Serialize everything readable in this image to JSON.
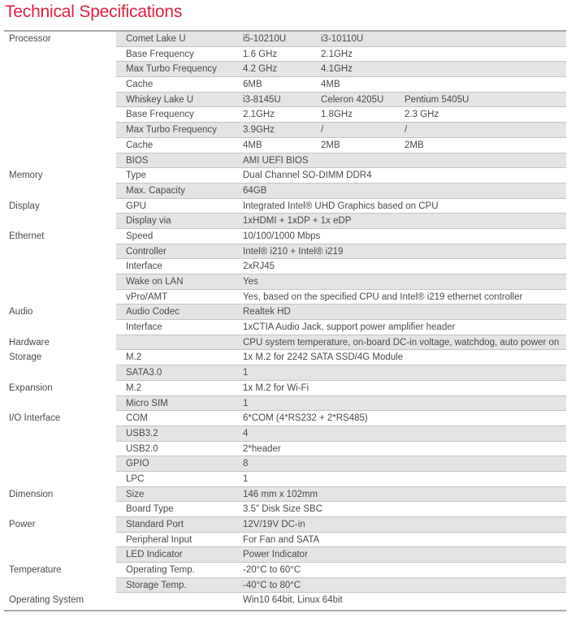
{
  "title": "Technical Specifications",
  "rows": [
    {
      "category": "Processor",
      "item": "Comet Lake U",
      "values": [
        "i5-10210U",
        "i3-10110U"
      ]
    },
    {
      "category": "",
      "item": "Base Frequency",
      "values": [
        "1.6 GHz",
        "2.1GHz"
      ]
    },
    {
      "category": "",
      "item": "Max Turbo Frequency",
      "values": [
        "4.2 GHz",
        "4.1GHz"
      ]
    },
    {
      "category": "",
      "item": "Cache",
      "values": [
        "6MB",
        "4MB"
      ]
    },
    {
      "category": "",
      "item": "Whiskey Lake U",
      "values": [
        "i3-8145U",
        "Celeron 4205U",
        "Pentium 5405U"
      ]
    },
    {
      "category": "",
      "item": "Base Frequency",
      "values": [
        "2.1GHz",
        "1.8GHz",
        "2.3 GHz"
      ]
    },
    {
      "category": "",
      "item": "Max Turbo Frequency",
      "values": [
        "3.9GHz",
        "/",
        "/"
      ]
    },
    {
      "category": "",
      "item": "Cache",
      "values": [
        "4MB",
        "2MB",
        "2MB"
      ]
    },
    {
      "category": "",
      "item": "BIOS",
      "values": [
        "AMI UEFI BIOS"
      ]
    },
    {
      "category": "Memory",
      "item": "Type",
      "values": [
        "Dual Channel SO-DIMM DDR4"
      ]
    },
    {
      "category": "",
      "item": "Max. Capacity",
      "values": [
        "64GB"
      ]
    },
    {
      "category": "Display",
      "item": "GPU",
      "values": [
        "Integrated Intel® UHD Graphics based on CPU"
      ]
    },
    {
      "category": "",
      "item": "Display via",
      "values": [
        "1xHDMI + 1xDP + 1x eDP"
      ]
    },
    {
      "category": "Ethernet",
      "item": "Speed",
      "values": [
        "10/100/1000 Mbps"
      ]
    },
    {
      "category": "",
      "item": "Controller",
      "values": [
        "Intel® i210 + Intel® i219"
      ]
    },
    {
      "category": "",
      "item": "Interface",
      "values": [
        "2xRJ45"
      ]
    },
    {
      "category": "",
      "item": "Wake on LAN",
      "values": [
        "Yes"
      ]
    },
    {
      "category": "",
      "item": "vPro/AMT",
      "values": [
        "Yes, based on the specified CPU and Intel® i219 ethernet controller"
      ]
    },
    {
      "category": "Audio",
      "item": "Audio Codec",
      "values": [
        "Realtek HD"
      ]
    },
    {
      "category": "",
      "item": "Interface",
      "values": [
        "1xCTIA Audio Jack, support power amplifier header"
      ]
    },
    {
      "category": "Hardware",
      "item": "",
      "values": [
        "CPU system temperature, on-board DC-in voltage, watchdog, auto power on"
      ]
    },
    {
      "category": "Storage",
      "item": "M.2",
      "values": [
        "1x M.2 for 2242 SATA SSD/4G Module"
      ]
    },
    {
      "category": "",
      "item": "SATA3.0",
      "values": [
        "1"
      ]
    },
    {
      "category": "Expansion",
      "item": "M.2",
      "values": [
        "1x M.2 for Wi-Fi"
      ]
    },
    {
      "category": "",
      "item": "Micro SIM",
      "values": [
        "1"
      ]
    },
    {
      "category": "I/O Interface",
      "item": "COM",
      "values": [
        "6*COM (4*RS232 + 2*RS485)"
      ]
    },
    {
      "category": "",
      "item": "USB3.2",
      "values": [
        "4"
      ]
    },
    {
      "category": "",
      "item": "USB2.0",
      "values": [
        "2*header"
      ]
    },
    {
      "category": "",
      "item": "GPIO",
      "values": [
        "8"
      ]
    },
    {
      "category": "",
      "item": "LPC",
      "values": [
        "1"
      ]
    },
    {
      "category": "Dimension",
      "item": "Size",
      "values": [
        "146 mm x 102mm"
      ]
    },
    {
      "category": "",
      "item": "Board Type",
      "values": [
        "3.5\" Disk Size SBC"
      ]
    },
    {
      "category": "Power",
      "item": "Standard Port",
      "values": [
        "12V/19V DC-in"
      ]
    },
    {
      "category": "",
      "item": "Peripheral Input",
      "values": [
        "For Fan and SATA"
      ]
    },
    {
      "category": "",
      "item": "LED Indicator",
      "values": [
        "Power Indicator"
      ]
    },
    {
      "category": "Temperature",
      "item": "Operating Temp.",
      "values": [
        "-20°C to 60°C"
      ]
    },
    {
      "category": "",
      "item": "Storage Temp.",
      "values": [
        "-40°C to 80°C"
      ]
    },
    {
      "category": "Operating System",
      "item": "",
      "values": [
        "Win10 64bit, Linux 64bit"
      ]
    }
  ],
  "colors": {
    "title": "#e0203c",
    "row_shade": "#e4e4e4",
    "rule": "#a8a8a8"
  }
}
